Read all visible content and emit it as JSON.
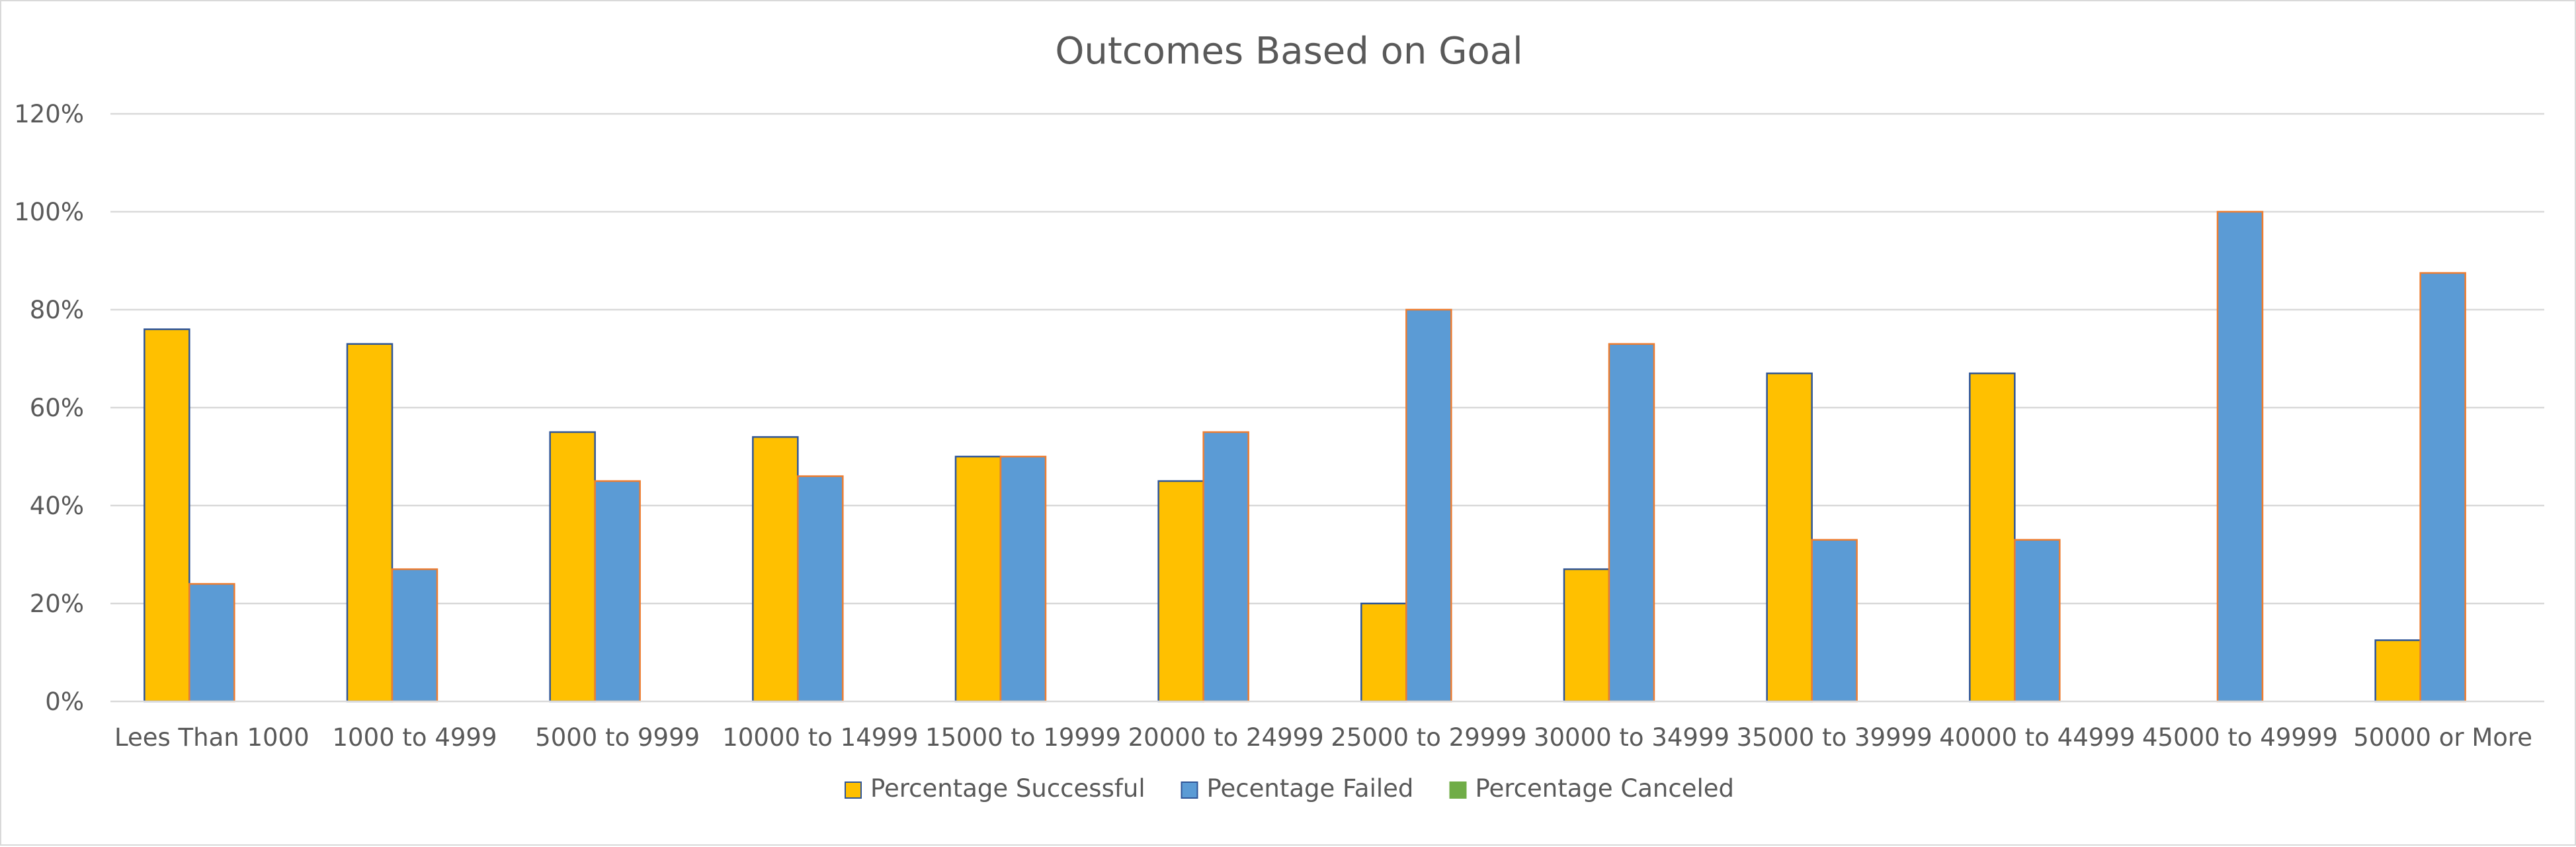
{
  "chart_data": {
    "type": "bar",
    "title": "Outcomes Based on Goal",
    "xlabel": "",
    "ylabel": "",
    "ylim": [
      0,
      120
    ],
    "yticks": [
      0,
      20,
      40,
      60,
      80,
      100,
      120
    ],
    "ytick_labels": [
      "0%",
      "20%",
      "40%",
      "60%",
      "80%",
      "100%",
      "120%"
    ],
    "grid": true,
    "legend_position": "bottom",
    "categories": [
      "Lees Than 1000",
      "1000 to 4999",
      "5000 to 9999",
      "10000 to 14999",
      "15000 to 19999",
      "20000 to 24999",
      "25000 to 29999",
      "30000 to 34999",
      "35000 to 39999",
      "40000 to 44999",
      "45000 to 49999",
      "50000 or More"
    ],
    "series": [
      {
        "name": "Percentage Successful",
        "color": "#FFC000",
        "values": [
          76,
          73,
          55,
          54,
          50,
          45,
          20,
          27,
          67,
          67,
          0,
          12.5
        ]
      },
      {
        "name": "Pecentage Failed",
        "color": "#5B9BD5",
        "values": [
          24,
          27,
          45,
          46,
          50,
          55,
          80,
          73,
          33,
          33,
          100,
          87.5
        ]
      },
      {
        "name": "Percentage Canceled",
        "color": "#70AD47",
        "values": [
          0,
          0,
          0,
          0,
          0,
          0,
          0,
          0,
          0,
          0,
          0,
          0
        ]
      }
    ]
  }
}
